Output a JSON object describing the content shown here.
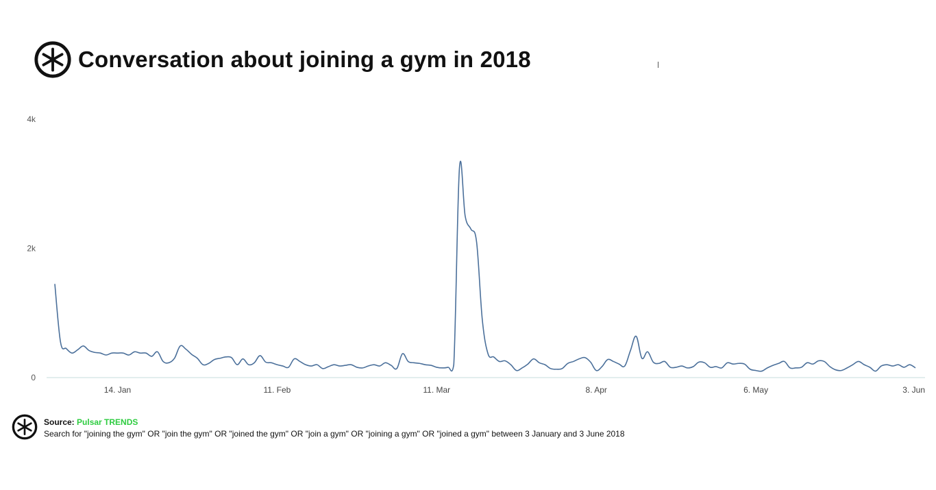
{
  "header": {
    "title": "Conversation about joining a gym in 2018"
  },
  "footer": {
    "source_label": "Source:",
    "source_name": "Pulsar TRENDS",
    "description": "Search for \"joining the gym\" OR \"join the gym\" OR \"joined the gym\" OR \"join a gym\" OR \"joining a gym\" OR \"joined a gym\" between 3 January and 3 June 2018"
  },
  "colors": {
    "line": "#4a6f9a",
    "axis": "#c5dcdc",
    "source_accent": "#2ecc40",
    "text": "#111111"
  },
  "icons": {
    "logo": "pulsar-asterisk-logo-icon"
  },
  "chart_data": {
    "type": "line",
    "title": "Conversation about joining a gym in 2018",
    "xlabel": "",
    "ylabel": "",
    "grid": false,
    "legend": "none",
    "ylim": [
      0,
      4000
    ],
    "y_ticks": [
      0,
      2000,
      4000
    ],
    "y_tick_labels": [
      "0",
      "2k",
      "4k"
    ],
    "x_tick_dates": [
      "2018-01-14",
      "2018-02-11",
      "2018-03-11",
      "2018-04-08",
      "2018-05-06",
      "2018-06-03"
    ],
    "x_tick_labels": [
      "14. Jan",
      "11. Feb",
      "11. Mar",
      "8. Apr",
      "6. May",
      "3. Jun"
    ],
    "series": [
      {
        "name": "",
        "x": [
          "2018-01-03",
          "2018-01-04",
          "2018-01-05",
          "2018-01-06",
          "2018-01-07",
          "2018-01-08",
          "2018-01-09",
          "2018-01-10",
          "2018-01-11",
          "2018-01-12",
          "2018-01-13",
          "2018-01-14",
          "2018-01-15",
          "2018-01-16",
          "2018-01-17",
          "2018-01-18",
          "2018-01-19",
          "2018-01-20",
          "2018-01-21",
          "2018-01-22",
          "2018-01-23",
          "2018-01-24",
          "2018-01-25",
          "2018-01-26",
          "2018-01-27",
          "2018-01-28",
          "2018-01-29",
          "2018-01-30",
          "2018-01-31",
          "2018-02-01",
          "2018-02-02",
          "2018-02-03",
          "2018-02-04",
          "2018-02-05",
          "2018-02-06",
          "2018-02-07",
          "2018-02-08",
          "2018-02-09",
          "2018-02-10",
          "2018-02-11",
          "2018-02-12",
          "2018-02-13",
          "2018-02-14",
          "2018-02-15",
          "2018-02-16",
          "2018-02-17",
          "2018-02-18",
          "2018-02-19",
          "2018-02-20",
          "2018-02-21",
          "2018-02-22",
          "2018-02-23",
          "2018-02-24",
          "2018-02-25",
          "2018-02-26",
          "2018-02-27",
          "2018-02-28",
          "2018-03-01",
          "2018-03-02",
          "2018-03-03",
          "2018-03-04",
          "2018-03-05",
          "2018-03-06",
          "2018-03-07",
          "2018-03-08",
          "2018-03-09",
          "2018-03-10",
          "2018-03-11",
          "2018-03-12",
          "2018-03-13",
          "2018-03-14",
          "2018-03-15",
          "2018-03-16",
          "2018-03-17",
          "2018-03-18",
          "2018-03-19",
          "2018-03-20",
          "2018-03-21",
          "2018-03-22",
          "2018-03-23",
          "2018-03-24",
          "2018-03-25",
          "2018-03-26",
          "2018-03-27",
          "2018-03-28",
          "2018-03-29",
          "2018-03-30",
          "2018-03-31",
          "2018-04-01",
          "2018-04-02",
          "2018-04-03",
          "2018-04-04",
          "2018-04-05",
          "2018-04-06",
          "2018-04-07",
          "2018-04-08",
          "2018-04-09",
          "2018-04-10",
          "2018-04-11",
          "2018-04-12",
          "2018-04-13",
          "2018-04-14",
          "2018-04-15",
          "2018-04-16",
          "2018-04-17",
          "2018-04-18",
          "2018-04-19",
          "2018-04-20",
          "2018-04-21",
          "2018-04-22",
          "2018-04-23",
          "2018-04-24",
          "2018-04-25",
          "2018-04-26",
          "2018-04-27",
          "2018-04-28",
          "2018-04-29",
          "2018-04-30",
          "2018-05-01",
          "2018-05-02",
          "2018-05-03",
          "2018-05-04",
          "2018-05-05",
          "2018-05-06",
          "2018-05-07",
          "2018-05-08",
          "2018-05-09",
          "2018-05-10",
          "2018-05-11",
          "2018-05-12",
          "2018-05-13",
          "2018-05-14",
          "2018-05-15",
          "2018-05-16",
          "2018-05-17",
          "2018-05-18",
          "2018-05-19",
          "2018-05-20",
          "2018-05-21",
          "2018-05-22",
          "2018-05-23",
          "2018-05-24",
          "2018-05-25",
          "2018-05-26",
          "2018-05-27",
          "2018-05-28",
          "2018-05-29",
          "2018-05-30",
          "2018-05-31",
          "2018-06-01",
          "2018-06-02",
          "2018-06-03"
        ],
        "values": [
          1450,
          550,
          450,
          380,
          430,
          490,
          420,
          390,
          380,
          350,
          380,
          380,
          380,
          350,
          400,
          380,
          380,
          330,
          400,
          250,
          230,
          300,
          490,
          440,
          360,
          300,
          200,
          220,
          280,
          300,
          320,
          310,
          200,
          290,
          200,
          230,
          340,
          240,
          230,
          200,
          180,
          160,
          290,
          250,
          200,
          180,
          200,
          140,
          170,
          200,
          180,
          190,
          200,
          160,
          150,
          180,
          200,
          180,
          230,
          190,
          140,
          370,
          250,
          230,
          220,
          200,
          190,
          160,
          150,
          160,
          200,
          3250,
          2500,
          2300,
          2100,
          900,
          370,
          320,
          250,
          260,
          200,
          110,
          150,
          210,
          290,
          230,
          200,
          140,
          130,
          140,
          220,
          250,
          290,
          310,
          240,
          110,
          170,
          280,
          250,
          210,
          180,
          420,
          640,
          300,
          400,
          240,
          220,
          250,
          160,
          160,
          180,
          150,
          170,
          240,
          230,
          160,
          170,
          150,
          230,
          210,
          220,
          210,
          130,
          110,
          100,
          150,
          190,
          220,
          250,
          150,
          150,
          160,
          230,
          210,
          260,
          250,
          170,
          120,
          110,
          150,
          200,
          250,
          200,
          160,
          100,
          180,
          200,
          180,
          200,
          160,
          200,
          150
        ]
      }
    ]
  }
}
